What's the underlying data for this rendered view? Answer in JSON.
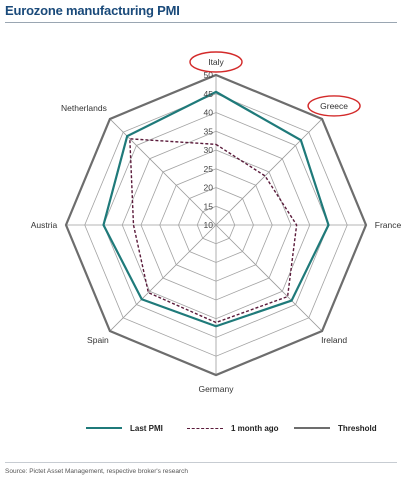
{
  "title": "Eurozone manufacturing PMI",
  "source": "Source: Pictet Asset Management, respective broker's research",
  "chart_data": {
    "type": "radar",
    "title": "Eurozone manufacturing PMI",
    "axes": [
      "Italy",
      "Greece",
      "France",
      "Ireland",
      "Germany",
      "Spain",
      "Austria",
      "Netherlands"
    ],
    "highlighted_axes": [
      "Italy",
      "Greece"
    ],
    "radial_range": [
      10,
      50
    ],
    "radial_ticks": [
      10,
      15,
      20,
      25,
      30,
      35,
      40,
      45,
      50
    ],
    "radial_tick_labels": [
      "10",
      "15",
      "20",
      "25",
      "30",
      "35",
      "40",
      "45",
      "50"
    ],
    "grid": true,
    "legend_position": "bottom",
    "series": [
      {
        "name": "Last PMI",
        "color": "#1f7a7a",
        "style": "solid",
        "values": [
          45.5,
          42.0,
          40.0,
          38.5,
          37.0,
          38.0,
          40.0,
          43.5
        ]
      },
      {
        "name": "1 month ago",
        "color": "#5a1a3a",
        "style": "dashed",
        "values": [
          31.5,
          28.5,
          31.5,
          37.0,
          36.0,
          35.5,
          32.0,
          42.5
        ]
      },
      {
        "name": "Threshold",
        "color": "#6d6d6d",
        "style": "solid",
        "values": [
          50,
          50,
          50,
          50,
          50,
          50,
          50,
          50
        ]
      }
    ]
  }
}
